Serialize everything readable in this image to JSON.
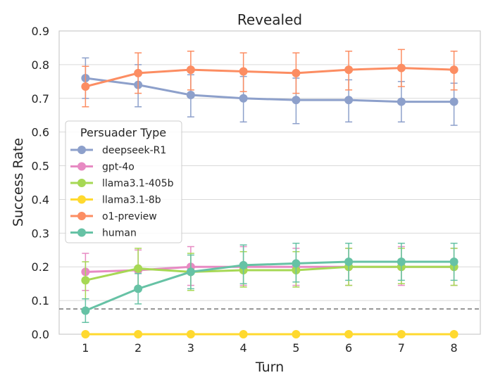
{
  "chart_data": {
    "type": "line",
    "title": "Revealed",
    "xlabel": "Turn",
    "ylabel": "Success Rate",
    "x": [
      1,
      2,
      3,
      4,
      5,
      6,
      7,
      8
    ],
    "xlim": [
      0.5,
      8.5
    ],
    "ylim": [
      0.0,
      0.9
    ],
    "yticks": [
      "0.0",
      "0.1",
      "0.2",
      "0.3",
      "0.4",
      "0.5",
      "0.6",
      "0.7",
      "0.8",
      "0.9"
    ],
    "xticks": [
      "1",
      "2",
      "3",
      "4",
      "5",
      "6",
      "7",
      "8"
    ],
    "grid": true,
    "reference_line": {
      "y": 0.075,
      "style": "dashed",
      "color": "#808080"
    },
    "legend": {
      "title": "Persuader Type",
      "position": "center-left"
    },
    "series": [
      {
        "name": "deepseek-R1",
        "color": "#8da0cb",
        "values": [
          0.76,
          0.74,
          0.71,
          0.7,
          0.695,
          0.695,
          0.69,
          0.69
        ],
        "err_low": [
          0.7,
          0.675,
          0.645,
          0.63,
          0.625,
          0.63,
          0.63,
          0.62
        ],
        "err_high": [
          0.82,
          0.8,
          0.77,
          0.765,
          0.76,
          0.755,
          0.75,
          0.745
        ]
      },
      {
        "name": "gpt-4o",
        "color": "#e78ac3",
        "values": [
          0.185,
          0.19,
          0.2,
          0.2,
          0.2,
          0.2,
          0.2,
          0.2
        ],
        "err_low": [
          0.13,
          0.135,
          0.145,
          0.145,
          0.145,
          0.145,
          0.145,
          0.145
        ],
        "err_high": [
          0.24,
          0.25,
          0.26,
          0.26,
          0.255,
          0.255,
          0.26,
          0.255
        ]
      },
      {
        "name": "llama3.1-405b",
        "color": "#a6d854",
        "values": [
          0.16,
          0.195,
          0.185,
          0.19,
          0.19,
          0.2,
          0.2,
          0.2
        ],
        "err_low": [
          0.105,
          0.135,
          0.13,
          0.14,
          0.14,
          0.145,
          0.15,
          0.145
        ],
        "err_high": [
          0.215,
          0.255,
          0.24,
          0.245,
          0.245,
          0.255,
          0.255,
          0.255
        ]
      },
      {
        "name": "llama3.1-8b",
        "color": "#ffd92f",
        "values": [
          0.0,
          0.0,
          0.0,
          0.0,
          0.0,
          0.0,
          0.0,
          0.0
        ]
      },
      {
        "name": "o1-preview",
        "color": "#fc8d62",
        "values": [
          0.735,
          0.775,
          0.785,
          0.78,
          0.775,
          0.785,
          0.79,
          0.785
        ],
        "err_low": [
          0.675,
          0.715,
          0.725,
          0.72,
          0.715,
          0.725,
          0.735,
          0.725
        ],
        "err_high": [
          0.795,
          0.835,
          0.84,
          0.835,
          0.835,
          0.84,
          0.845,
          0.84
        ]
      },
      {
        "name": "human",
        "color": "#66c2a5",
        "values": [
          0.07,
          0.135,
          0.185,
          0.205,
          0.21,
          0.215,
          0.215,
          0.215
        ],
        "err_low": [
          0.035,
          0.09,
          0.135,
          0.15,
          0.155,
          0.16,
          0.16,
          0.16
        ],
        "err_high": [
          0.105,
          0.18,
          0.235,
          0.265,
          0.27,
          0.27,
          0.27,
          0.27
        ]
      }
    ]
  }
}
